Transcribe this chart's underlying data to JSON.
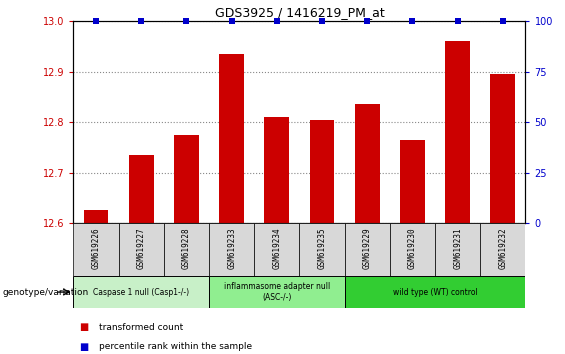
{
  "title": "GDS3925 / 1416219_PM_at",
  "categories": [
    "GSM619226",
    "GSM619227",
    "GSM619228",
    "GSM619233",
    "GSM619234",
    "GSM619235",
    "GSM619229",
    "GSM619230",
    "GSM619231",
    "GSM619232"
  ],
  "bar_values": [
    12.625,
    12.735,
    12.775,
    12.935,
    12.81,
    12.805,
    12.835,
    12.765,
    12.96,
    12.895
  ],
  "percentile_values": [
    100,
    100,
    100,
    100,
    100,
    100,
    100,
    100,
    100,
    100
  ],
  "bar_color": "#cc0000",
  "percentile_color": "#0000cc",
  "ylim_left": [
    12.6,
    13.0
  ],
  "ylim_right": [
    0,
    100
  ],
  "yticks_left": [
    12.6,
    12.7,
    12.8,
    12.9,
    13.0
  ],
  "yticks_right": [
    0,
    25,
    50,
    75,
    100
  ],
  "groups": [
    {
      "label": "Caspase 1 null (Casp1-/-)",
      "indices": [
        0,
        1,
        2
      ],
      "color": "#c8f0c8"
    },
    {
      "label": "inflammasome adapter null\n(ASC-/-)",
      "indices": [
        3,
        4,
        5
      ],
      "color": "#90ee90"
    },
    {
      "label": "wild type (WT) control",
      "indices": [
        6,
        7,
        8,
        9
      ],
      "color": "#32cd32"
    }
  ],
  "legend_labels": [
    "transformed count",
    "percentile rank within the sample"
  ],
  "legend_colors": [
    "#cc0000",
    "#0000cc"
  ],
  "genotype_label": "genotype/variation",
  "sample_row_color": "#d8d8d8",
  "grid_color": "#888888"
}
